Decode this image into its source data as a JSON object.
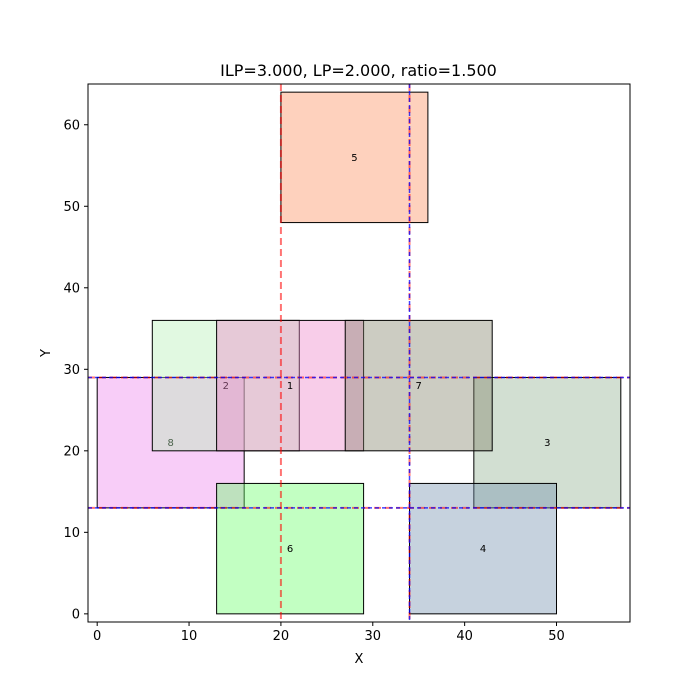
{
  "chart_data": {
    "type": "rectangles",
    "title": "ILP=3.000, LP=2.000, ratio=1.500",
    "xlabel": "X",
    "ylabel": "Y",
    "xlim": [
      -1,
      58
    ],
    "ylim": [
      -1,
      65
    ],
    "xticks": [
      0,
      10,
      20,
      30,
      40,
      50
    ],
    "yticks": [
      0,
      10,
      20,
      30,
      40,
      50,
      60
    ],
    "grid": false,
    "rectangles": [
      {
        "label": "5",
        "x0": 20,
        "x1": 36,
        "y0": 48,
        "y1": 64,
        "color": "#fc8d59"
      },
      {
        "label": "8",
        "x0": 0,
        "x1": 16,
        "y0": 13,
        "y1": 29,
        "color": "#ee82ee"
      },
      {
        "label": "3",
        "x0": 41,
        "x1": 57,
        "y0": 13,
        "y1": 29,
        "color": "#8fae8f"
      },
      {
        "label": "6",
        "x0": 13,
        "x1": 29,
        "y0": 0,
        "y1": 16,
        "color": "#66ff66"
      },
      {
        "label": "4",
        "x0": 34,
        "x1": 50,
        "y0": 0,
        "y1": 16,
        "color": "#708fad"
      },
      {
        "label": "2",
        "x0": 6,
        "x1": 22,
        "y0": 20,
        "y1": 36,
        "color": "#b3f0b3"
      },
      {
        "label": "1",
        "x0": 13,
        "x1": 29,
        "y0": 20,
        "y1": 36,
        "color": "#ee82c9"
      },
      {
        "label": "7",
        "x0": 27,
        "x1": 43,
        "y0": 20,
        "y1": 36,
        "color": "#7f7f66"
      }
    ],
    "vlines_red": [
      20,
      34
    ],
    "hlines_red": [
      13,
      29
    ],
    "vlines_blue": [
      34
    ],
    "hlines_blue": [
      13,
      29
    ]
  }
}
